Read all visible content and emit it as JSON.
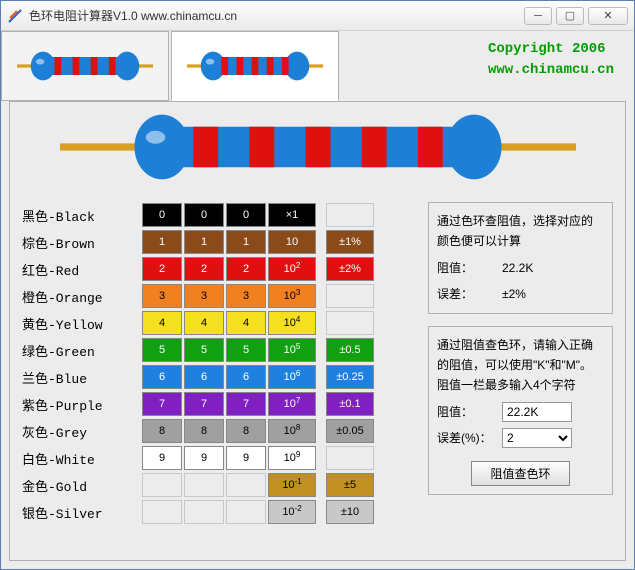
{
  "window": {
    "title": "色环电阻计算器V1.0   www.chinamcu.cn"
  },
  "copyright": {
    "line1": "Copyright 2006",
    "line2": "www.chinamcu.cn"
  },
  "big_resistor": {
    "body_color": "#1e7fd6",
    "wire_color": "#d8a020",
    "bands": [
      "#e01010",
      "#e01010",
      "#e01010",
      "#e01010",
      "#e01010"
    ]
  },
  "tab_resistors": {
    "four": {
      "body": "#1e7fd6",
      "wire": "#d8a020",
      "bands": [
        "#e01010",
        "#e01010",
        "#e01010",
        "#e01010"
      ]
    },
    "five": {
      "body": "#1e7fd6",
      "wire": "#d8a020",
      "bands": [
        "#e01010",
        "#e01010",
        "#e01010",
        "#e01010",
        "#e01010"
      ]
    }
  },
  "colors": [
    {
      "label": "黑色-Black",
      "bg": "#000000",
      "fg": "#ffffff",
      "d": "0",
      "m": "×1",
      "t": ""
    },
    {
      "label": "棕色-Brown",
      "bg": "#8b4a1a",
      "fg": "#ffffff",
      "d": "1",
      "m": "10",
      "t": "±1%"
    },
    {
      "label": "红色-Red",
      "bg": "#e01010",
      "fg": "#ffffff",
      "d": "2",
      "m": "10^2",
      "t": "±2%"
    },
    {
      "label": "橙色-Orange",
      "bg": "#f08020",
      "fg": "#000000",
      "d": "3",
      "m": "10^3",
      "t": ""
    },
    {
      "label": "黄色-Yellow",
      "bg": "#f5e020",
      "fg": "#000000",
      "d": "4",
      "m": "10^4",
      "t": ""
    },
    {
      "label": "绿色-Green",
      "bg": "#10a010",
      "fg": "#ffffff",
      "d": "5",
      "m": "10^5",
      "t": "±0.5"
    },
    {
      "label": "兰色-Blue",
      "bg": "#2080e0",
      "fg": "#ffffff",
      "d": "6",
      "m": "10^6",
      "t": "±0.25"
    },
    {
      "label": "紫色-Purple",
      "bg": "#8020c0",
      "fg": "#ffffff",
      "d": "7",
      "m": "10^7",
      "t": "±0.1"
    },
    {
      "label": "灰色-Grey",
      "bg": "#a0a0a0",
      "fg": "#000000",
      "d": "8",
      "m": "10^8",
      "t": "±0.05"
    },
    {
      "label": "白色-White",
      "bg": "#ffffff",
      "fg": "#000000",
      "d": "9",
      "m": "10^9",
      "t": ""
    },
    {
      "label": "金色-Gold",
      "bg": "#c09020",
      "fg": "#000000",
      "d": "",
      "m": "10^-1",
      "t": "±5"
    },
    {
      "label": "银色-Silver",
      "bg": "#c8c8c8",
      "fg": "#000000",
      "d": "",
      "m": "10^-2",
      "t": "±10"
    }
  ],
  "tolerance_bg": {
    "±1%": "#8b4a1a",
    "±2%": "#e01010",
    "±0.5": "#10a010",
    "±0.25": "#2080e0",
    "±0.1": "#8020c0",
    "±0.05": "#a0a0a0",
    "±5": "#c09020",
    "±10": "#c8c8c8"
  },
  "tolerance_fg": {
    "±1%": "#ffffff",
    "±2%": "#ffffff",
    "±0.5": "#ffffff",
    "±0.25": "#ffffff",
    "±0.1": "#ffffff",
    "±0.05": "#000000",
    "±5": "#000000",
    "±10": "#000000"
  },
  "right": {
    "box1_text": "通过色环查阻值，选择对应的颜色便可以计算",
    "box1_r_label": "阻值：",
    "box1_r_value": "22.2K",
    "box1_t_label": "误差：",
    "box1_t_value": "±2%",
    "box2_text": "通过阻值查色环，请输入正确的阻值，可以使用\"K\"和\"M\"。阻值一栏最多输入4个字符",
    "box2_r_label": "阻值：",
    "box2_r_value": "22.2K",
    "box2_t_label": "误差(%)：",
    "box2_t_value": "2",
    "button": "阻值查色环"
  }
}
